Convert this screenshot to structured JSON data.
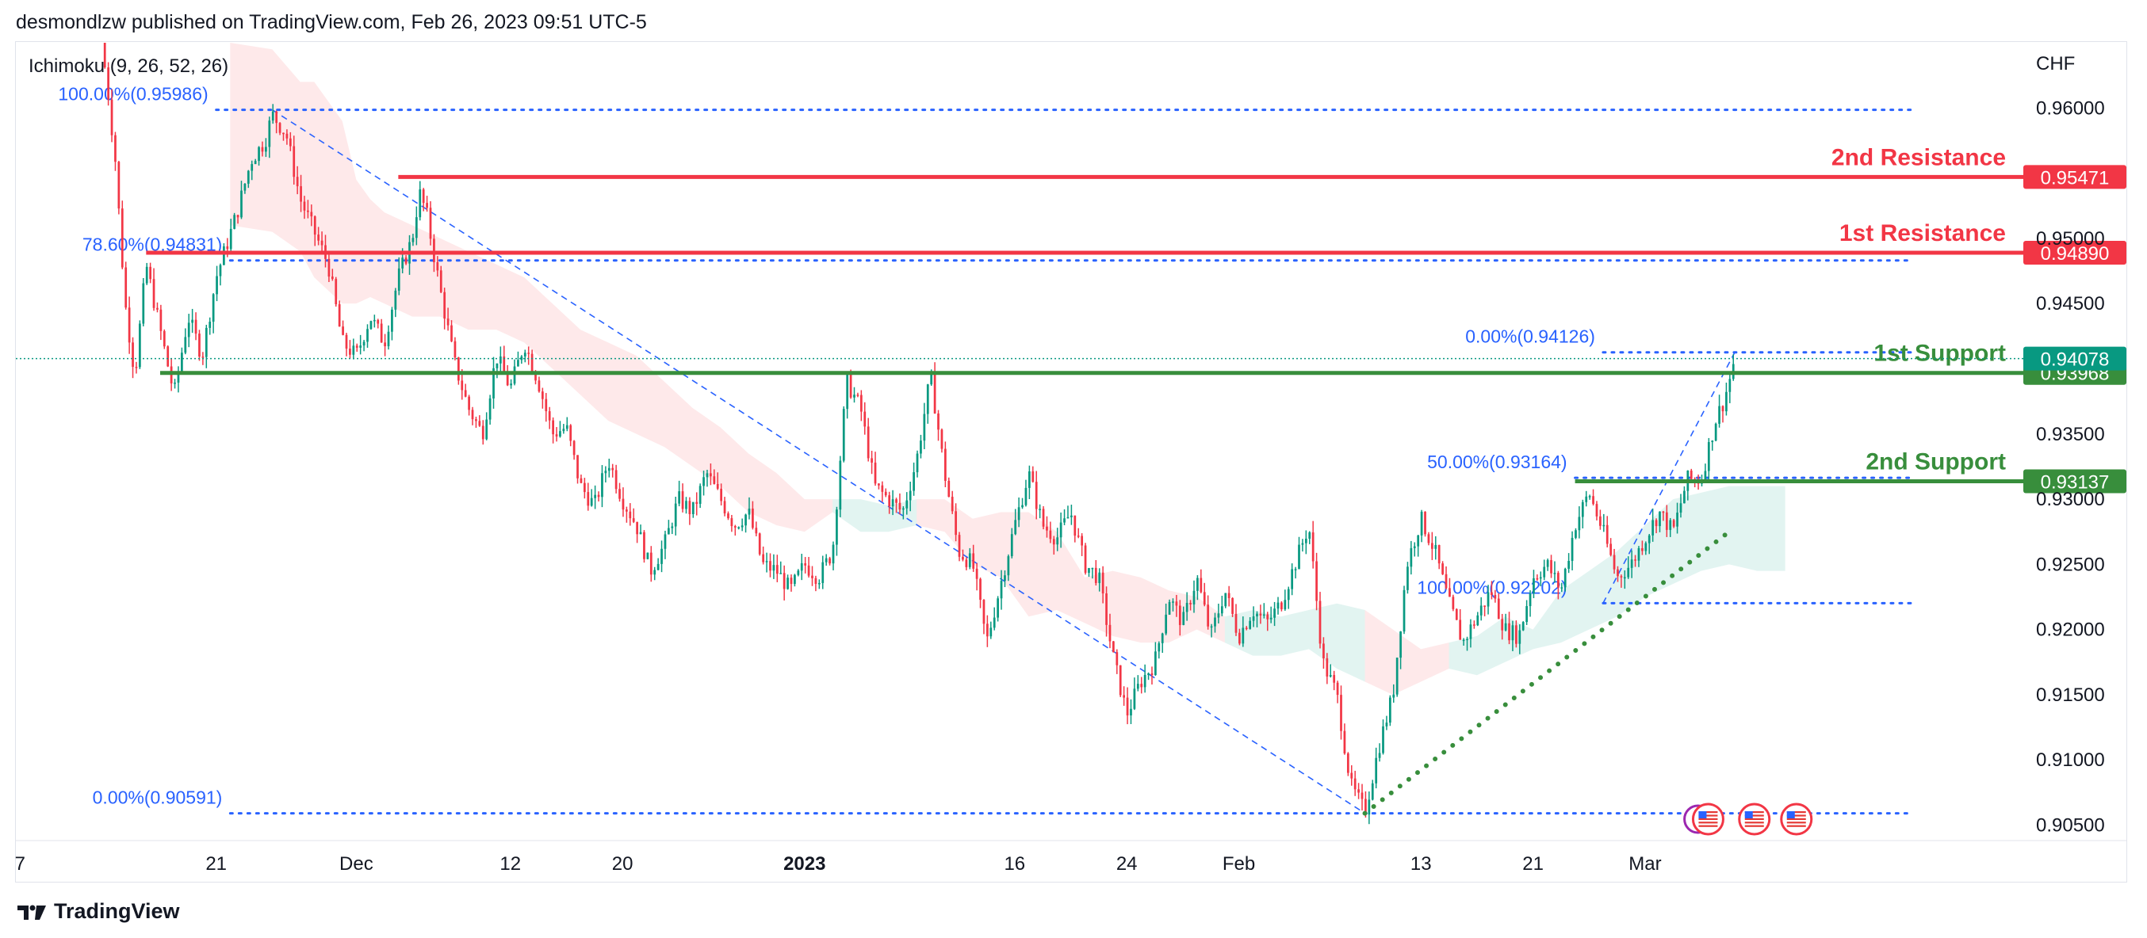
{
  "header": {
    "text": "desmondlzw published on TradingView.com, Feb 26, 2023 09:51 UTC-5"
  },
  "footer": {
    "brand": "TradingView"
  },
  "chart_data": {
    "type": "candlestick",
    "symbol_currency": "CHF",
    "indicator": "Ichimoku (9, 26, 52, 26)",
    "ylim": [
      0.904,
      0.965
    ],
    "y_ticks": [
      "0.96000",
      "0.95000",
      "0.94500",
      "0.93500",
      "0.93000",
      "0.92500",
      "0.92000",
      "0.91500",
      "0.91000",
      "0.90500"
    ],
    "x_ticks": [
      {
        "label": "7",
        "x": 0,
        "bold": false
      },
      {
        "label": "21",
        "x": 14,
        "bold": false
      },
      {
        "label": "Dec",
        "x": 24,
        "bold": false
      },
      {
        "label": "12",
        "x": 35,
        "bold": false
      },
      {
        "label": "20",
        "x": 43,
        "bold": false
      },
      {
        "label": "2023",
        "x": 56,
        "bold": true
      },
      {
        "label": "16",
        "x": 71,
        "bold": false
      },
      {
        "label": "24",
        "x": 79,
        "bold": false
      },
      {
        "label": "Feb",
        "x": 87,
        "bold": false
      },
      {
        "label": "13",
        "x": 100,
        "bold": false
      },
      {
        "label": "21",
        "x": 108,
        "bold": false
      },
      {
        "label": "Mar",
        "x": 116,
        "bold": false
      }
    ],
    "x_range": [
      -0.3,
      143
    ],
    "close_path": [
      [
        5.8,
        0.965
      ],
      [
        6.2,
        0.962
      ],
      [
        6.8,
        0.956
      ],
      [
        7.5,
        0.945
      ],
      [
        8.2,
        0.9395
      ],
      [
        9.0,
        0.948
      ],
      [
        10.0,
        0.943
      ],
      [
        11.0,
        0.938
      ],
      [
        12.0,
        0.944
      ],
      [
        13.0,
        0.941
      ],
      [
        14.0,
        0.947
      ],
      [
        15.5,
        0.952
      ],
      [
        16.5,
        0.956
      ],
      [
        17.5,
        0.9575
      ],
      [
        18.0,
        0.9595
      ],
      [
        19.0,
        0.958
      ],
      [
        20.0,
        0.953
      ],
      [
        21.0,
        0.9505
      ],
      [
        22.0,
        0.948
      ],
      [
        23.0,
        0.942
      ],
      [
        24.0,
        0.941
      ],
      [
        25.0,
        0.944
      ],
      [
        26.0,
        0.942
      ],
      [
        27.0,
        0.947
      ],
      [
        28.0,
        0.95
      ],
      [
        28.5,
        0.9535
      ],
      [
        29.0,
        0.952
      ],
      [
        30.0,
        0.946
      ],
      [
        31.0,
        0.9405
      ],
      [
        32.0,
        0.937
      ],
      [
        33.0,
        0.935
      ],
      [
        34.0,
        0.941
      ],
      [
        35.0,
        0.9385
      ],
      [
        36.0,
        0.942
      ],
      [
        37.0,
        0.939
      ],
      [
        38.0,
        0.935
      ],
      [
        39.0,
        0.9355
      ],
      [
        40.0,
        0.931
      ],
      [
        41.0,
        0.9295
      ],
      [
        42.0,
        0.933
      ],
      [
        43.0,
        0.93
      ],
      [
        44.0,
        0.928
      ],
      [
        45.0,
        0.9245
      ],
      [
        46.0,
        0.9265
      ],
      [
        47.0,
        0.93
      ],
      [
        48.0,
        0.929
      ],
      [
        49.0,
        0.932
      ],
      [
        50.0,
        0.93
      ],
      [
        51.0,
        0.928
      ],
      [
        52.0,
        0.929
      ],
      [
        53.0,
        0.925
      ],
      [
        54.0,
        0.9245
      ],
      [
        55.0,
        0.923
      ],
      [
        56.0,
        0.925
      ],
      [
        57.0,
        0.924
      ],
      [
        58.0,
        0.926
      ],
      [
        59.0,
        0.939
      ],
      [
        60.0,
        0.937
      ],
      [
        61.0,
        0.931
      ],
      [
        62.0,
        0.93
      ],
      [
        63.0,
        0.929
      ],
      [
        64.0,
        0.933
      ],
      [
        65.0,
        0.9395
      ],
      [
        66.0,
        0.932
      ],
      [
        67.0,
        0.926
      ],
      [
        68.0,
        0.925
      ],
      [
        69.0,
        0.919
      ],
      [
        70.0,
        0.9235
      ],
      [
        71.0,
        0.928
      ],
      [
        72.0,
        0.932
      ],
      [
        73.0,
        0.928
      ],
      [
        74.0,
        0.927
      ],
      [
        75.0,
        0.929
      ],
      [
        76.0,
        0.925
      ],
      [
        77.0,
        0.924
      ],
      [
        78.0,
        0.918
      ],
      [
        79.0,
        0.9135
      ],
      [
        80.0,
        0.916
      ],
      [
        81.0,
        0.9175
      ],
      [
        82.0,
        0.9225
      ],
      [
        83.0,
        0.9205
      ],
      [
        84.0,
        0.924
      ],
      [
        85.0,
        0.9195
      ],
      [
        86.0,
        0.923
      ],
      [
        87.0,
        0.9195
      ],
      [
        88.0,
        0.9215
      ],
      [
        89.0,
        0.9205
      ],
      [
        90.0,
        0.922
      ],
      [
        91.0,
        0.925
      ],
      [
        92.0,
        0.928
      ],
      [
        93.0,
        0.9175
      ],
      [
        94.0,
        0.915
      ],
      [
        95.0,
        0.908
      ],
      [
        96.0,
        0.906
      ],
      [
        97.0,
        0.911
      ],
      [
        98.0,
        0.915
      ],
      [
        99.0,
        0.925
      ],
      [
        100.0,
        0.9285
      ],
      [
        101.0,
        0.926
      ],
      [
        102.0,
        0.922
      ],
      [
        103.0,
        0.919
      ],
      [
        104.0,
        0.921
      ],
      [
        105.0,
        0.923
      ],
      [
        106.0,
        0.92
      ],
      [
        107.0,
        0.9195
      ],
      [
        108.0,
        0.924
      ],
      [
        109.0,
        0.925
      ],
      [
        110.0,
        0.923
      ],
      [
        111.0,
        0.928
      ],
      [
        112.0,
        0.9305
      ],
      [
        113.0,
        0.9275
      ],
      [
        114.0,
        0.924
      ],
      [
        115.0,
        0.925
      ],
      [
        116.0,
        0.927
      ],
      [
        117.0,
        0.929
      ],
      [
        118.0,
        0.9275
      ],
      [
        119.0,
        0.9315
      ],
      [
        120.0,
        0.9315
      ],
      [
        121.0,
        0.936
      ],
      [
        121.6,
        0.9375
      ],
      [
        122.0,
        0.939
      ],
      [
        122.4,
        0.9408
      ]
    ],
    "cloud": [
      {
        "color": "#f7525f",
        "upper": [
          [
            15,
            0.965
          ],
          [
            18,
            0.9645
          ],
          [
            20,
            0.962
          ],
          [
            21,
            0.962
          ],
          [
            23,
            0.959
          ],
          [
            24,
            0.9545
          ],
          [
            25,
            0.953
          ],
          [
            26,
            0.952
          ],
          [
            28,
            0.951
          ],
          [
            30,
            0.95
          ],
          [
            32,
            0.949
          ],
          [
            34,
            0.948
          ],
          [
            36,
            0.947
          ],
          [
            38,
            0.945
          ],
          [
            40,
            0.943
          ],
          [
            42,
            0.942
          ],
          [
            44,
            0.941
          ],
          [
            46,
            0.939
          ],
          [
            48,
            0.937
          ],
          [
            50,
            0.9355
          ],
          [
            52,
            0.9335
          ],
          [
            54,
            0.932
          ],
          [
            56,
            0.93
          ],
          [
            58,
            0.93
          ]
        ],
        "lower": [
          [
            15,
            0.951
          ],
          [
            18,
            0.9505
          ],
          [
            20,
            0.949
          ],
          [
            21,
            0.947
          ],
          [
            23,
            0.945
          ],
          [
            24,
            0.945
          ],
          [
            25,
            0.9455
          ],
          [
            26,
            0.945
          ],
          [
            28,
            0.944
          ],
          [
            30,
            0.944
          ],
          [
            32,
            0.943
          ],
          [
            34,
            0.943
          ],
          [
            36,
            0.942
          ],
          [
            38,
            0.94
          ],
          [
            40,
            0.938
          ],
          [
            42,
            0.936
          ],
          [
            44,
            0.935
          ],
          [
            46,
            0.934
          ],
          [
            48,
            0.9325
          ],
          [
            50,
            0.931
          ],
          [
            52,
            0.929
          ],
          [
            54,
            0.928
          ],
          [
            56,
            0.9275
          ],
          [
            58,
            0.929
          ]
        ]
      },
      {
        "color": "#22ab94",
        "upper": [
          [
            58,
            0.93
          ],
          [
            60,
            0.93
          ],
          [
            62,
            0.9295
          ],
          [
            64,
            0.93
          ]
        ],
        "lower": [
          [
            58,
            0.929
          ],
          [
            60,
            0.9275
          ],
          [
            62,
            0.9275
          ],
          [
            64,
            0.928
          ]
        ]
      },
      {
        "color": "#f7525f",
        "upper": [
          [
            64,
            0.93
          ],
          [
            66,
            0.93
          ],
          [
            68,
            0.9285
          ],
          [
            70,
            0.929
          ],
          [
            72,
            0.929
          ],
          [
            74,
            0.9275
          ],
          [
            76,
            0.924
          ],
          [
            78,
            0.9245
          ],
          [
            80,
            0.924
          ],
          [
            82,
            0.923
          ],
          [
            84,
            0.9225
          ],
          [
            86,
            0.921
          ]
        ],
        "lower": [
          [
            64,
            0.928
          ],
          [
            66,
            0.9275
          ],
          [
            68,
            0.925
          ],
          [
            70,
            0.924
          ],
          [
            72,
            0.921
          ],
          [
            74,
            0.9215
          ],
          [
            76,
            0.9205
          ],
          [
            78,
            0.9195
          ],
          [
            80,
            0.919
          ],
          [
            82,
            0.919
          ],
          [
            84,
            0.92
          ],
          [
            86,
            0.919
          ]
        ]
      },
      {
        "color": "#22ab94",
        "upper": [
          [
            86,
            0.921
          ],
          [
            88,
            0.9215
          ],
          [
            90,
            0.921
          ],
          [
            92,
            0.9215
          ],
          [
            94,
            0.922
          ],
          [
            96,
            0.9215
          ]
        ],
        "lower": [
          [
            86,
            0.919
          ],
          [
            88,
            0.918
          ],
          [
            90,
            0.918
          ],
          [
            92,
            0.9185
          ],
          [
            94,
            0.917
          ],
          [
            96,
            0.916
          ]
        ]
      },
      {
        "color": "#f7525f",
        "upper": [
          [
            96,
            0.9215
          ],
          [
            98,
            0.92
          ],
          [
            100,
            0.9185
          ],
          [
            102,
            0.919
          ]
        ],
        "lower": [
          [
            96,
            0.916
          ],
          [
            98,
            0.915
          ],
          [
            100,
            0.916
          ],
          [
            102,
            0.917
          ]
        ]
      },
      {
        "color": "#22ab94",
        "upper": [
          [
            102,
            0.919
          ],
          [
            104,
            0.9195
          ],
          [
            106,
            0.921
          ],
          [
            108,
            0.92
          ],
          [
            110,
            0.923
          ],
          [
            112,
            0.9245
          ],
          [
            114,
            0.926
          ],
          [
            116,
            0.928
          ],
          [
            118,
            0.93
          ],
          [
            120,
            0.9305
          ],
          [
            122,
            0.931
          ],
          [
            124,
            0.931
          ],
          [
            126,
            0.931
          ]
        ],
        "lower": [
          [
            102,
            0.917
          ],
          [
            104,
            0.9165
          ],
          [
            106,
            0.9175
          ],
          [
            108,
            0.9185
          ],
          [
            110,
            0.919
          ],
          [
            112,
            0.92
          ],
          [
            114,
            0.921
          ],
          [
            116,
            0.9225
          ],
          [
            118,
            0.9235
          ],
          [
            120,
            0.9245
          ],
          [
            122,
            0.925
          ],
          [
            124,
            0.9245
          ],
          [
            126,
            0.9245
          ]
        ]
      }
    ],
    "horizontal_levels": [
      {
        "label": "2nd Resistance",
        "value": 0.95471,
        "price_label": "0.95471",
        "color": "#f23645",
        "x_start": 27
      },
      {
        "label": "1st Resistance",
        "value": 0.9489,
        "price_label": "0.94890",
        "color": "#f23645",
        "x_start": 9
      },
      {
        "label": "1st Support",
        "value": 0.93968,
        "price_label": "0.93968",
        "color": "#388e3c",
        "x_start": 10
      },
      {
        "label": "2nd Support",
        "value": 0.93137,
        "price_label": "0.93137",
        "color": "#388e3c",
        "x_start": 111
      }
    ],
    "current_price": {
      "value": 0.94078,
      "price_label": "0.94078",
      "color": "#089981"
    },
    "fibonacci": [
      {
        "label": "100.00%(0.95986)",
        "value": 0.95986,
        "x_start": 14,
        "x_end": 135,
        "label_x": 14
      },
      {
        "label": "78.60%(0.94831)",
        "value": 0.94831,
        "x_start": 15,
        "x_end": 135,
        "label_x": 15
      },
      {
        "label": "0.00%(0.90591)",
        "value": 0.90591,
        "x_start": 15,
        "x_end": 135,
        "label_x": 15
      },
      {
        "label": "0.00%(0.94126)",
        "value": 0.94126,
        "x_start": 113,
        "x_end": 135,
        "label_x": 113
      },
      {
        "label": "50.00%(0.93164)",
        "value": 0.93164,
        "x_start": 111,
        "x_end": 135,
        "label_x": 111
      },
      {
        "label": "100.00%(0.92202)",
        "value": 0.92202,
        "x_start": 113,
        "x_end": 135,
        "label_x": 111
      }
    ],
    "fib_diagonals": [
      {
        "from": [
          18,
          0.95986
        ],
        "to": [
          96,
          0.90591
        ]
      },
      {
        "from": [
          113,
          0.92202
        ],
        "to": [
          122.4,
          0.94126
        ]
      }
    ],
    "trendline": {
      "from": [
        96,
        0.90591
      ],
      "to": [
        122,
        0.9275
      ],
      "color": "#388e3c"
    },
    "events": [
      {
        "x": 120,
        "kind": "purple-circle"
      },
      {
        "x": 120.5,
        "kind": "us-flag"
      },
      {
        "x": 123.8,
        "kind": "us-flag"
      },
      {
        "x": 126.8,
        "kind": "us-flag"
      }
    ]
  }
}
